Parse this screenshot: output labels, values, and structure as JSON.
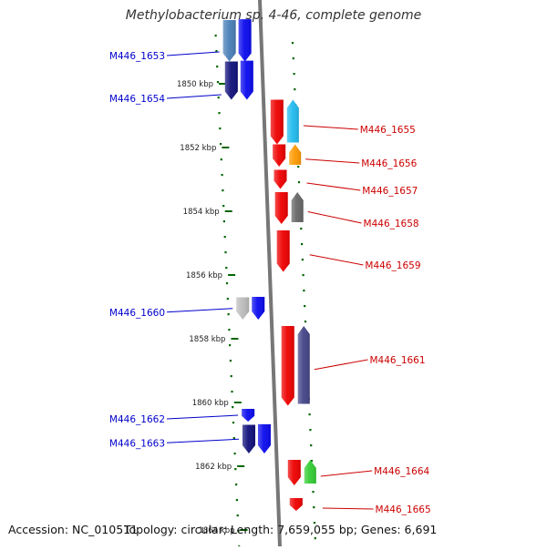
{
  "title": "Methylobacterium sp. 4-46, complete genome",
  "footer": {
    "accession": "Accession: NC_010511",
    "summary": "Topology: circular; Length: 7,659,055 bp; Genes: 6,691"
  },
  "colors": {
    "minus_label": "#0000cc",
    "plus_label": "#cc0000",
    "tick": "#006600",
    "backbone": "#777777"
  },
  "scale": {
    "unit": "kbp",
    "ticks": [
      {
        "kbp": 1850,
        "label": "1850 kbp"
      },
      {
        "kbp": 1852,
        "label": "1852 kbp"
      },
      {
        "kbp": 1854,
        "label": "1854 kbp"
      },
      {
        "kbp": 1856,
        "label": "1856 kbp"
      },
      {
        "kbp": 1858,
        "label": "1858 kbp"
      },
      {
        "kbp": 1860,
        "label": "1860 kbp"
      },
      {
        "kbp": 1862,
        "label": "1862 kbp"
      },
      {
        "kbp": 1864,
        "label": "1864 kbp"
      }
    ]
  },
  "genes": [
    {
      "label": "M446_1653",
      "strand": "minus",
      "start_kbp": 1848.0,
      "end_kbp": 1849.3,
      "color": "#4a7fb8",
      "pair_color": "#0a0aee"
    },
    {
      "label": "M446_1654",
      "strand": "minus",
      "start_kbp": 1849.3,
      "end_kbp": 1850.5,
      "color": "#10107a",
      "pair_color": "#0a0aee"
    },
    {
      "label": "M446_1655",
      "strand": "plus",
      "start_kbp": 1850.5,
      "end_kbp": 1851.9,
      "color": "#ee0000",
      "pair_color": "#22bbee"
    },
    {
      "label": "M446_1656",
      "strand": "plus",
      "start_kbp": 1851.9,
      "end_kbp": 1852.6,
      "color": "#ee0000",
      "pair_color": "#ff9900"
    },
    {
      "label": "M446_1657",
      "strand": "plus",
      "start_kbp": 1852.7,
      "end_kbp": 1853.3,
      "color": "#ee0000",
      "pair_color": ""
    },
    {
      "label": "M446_1658",
      "strand": "plus",
      "start_kbp": 1853.4,
      "end_kbp": 1854.4,
      "color": "#ee0000",
      "pair_color": "#666666"
    },
    {
      "label": "M446_1659",
      "strand": "plus",
      "start_kbp": 1854.6,
      "end_kbp": 1855.9,
      "color": "#ee0000",
      "pair_color": ""
    },
    {
      "label": "M446_1660",
      "strand": "minus",
      "start_kbp": 1856.7,
      "end_kbp": 1857.4,
      "color": "#bbbbbb",
      "pair_color": "#0a0aee"
    },
    {
      "label": "M446_1661",
      "strand": "plus",
      "start_kbp": 1857.6,
      "end_kbp": 1860.1,
      "color": "#ee0000",
      "pair_color": "#444488"
    },
    {
      "label": "M446_1662",
      "strand": "minus",
      "start_kbp": 1860.2,
      "end_kbp": 1860.6,
      "color": "#0a0aee",
      "pair_color": ""
    },
    {
      "label": "M446_1663",
      "strand": "minus",
      "start_kbp": 1860.7,
      "end_kbp": 1861.6,
      "color": "#10107a",
      "pair_color": "#0a0aee"
    },
    {
      "label": "M446_1664",
      "strand": "plus",
      "start_kbp": 1861.8,
      "end_kbp": 1862.6,
      "color": "#ee0000",
      "pair_color": "#33cc33"
    },
    {
      "label": "M446_1665",
      "strand": "plus",
      "start_kbp": 1863.0,
      "end_kbp": 1863.4,
      "color": "#ee0000",
      "pair_color": ""
    }
  ]
}
